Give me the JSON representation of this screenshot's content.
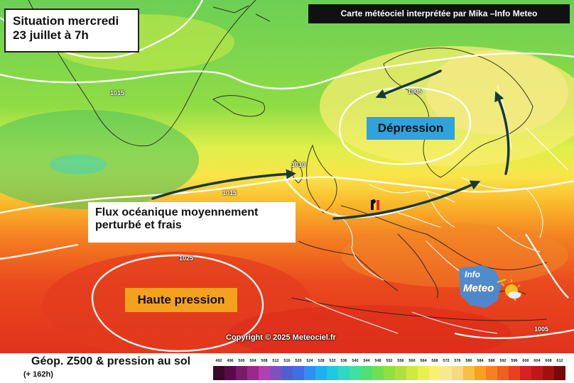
{
  "title": {
    "line1": "Situation mercredi",
    "line2": "23 juillet à 7h"
  },
  "header_banner": "Carte météociel interprétée par Mika –Info Meteo",
  "labels": {
    "depression": "Dépression",
    "haute_pression": "Haute pression",
    "flux_line1": "Flux océanique moyennement",
    "flux_line2": "perturbé et frais"
  },
  "isobars": [
    "1015",
    "1005",
    "1010",
    "1015",
    "1025",
    "1005"
  ],
  "copyright": "Copyright © 2025 Meteociel.fr",
  "logo": {
    "top": "Info",
    "bottom": "Meteo"
  },
  "legend": {
    "title": "Géop. Z500 & pression au sol",
    "subtitle": "(+ 162h)",
    "scale_values": [
      "492",
      "496",
      "500",
      "504",
      "508",
      "512",
      "516",
      "520",
      "524",
      "528",
      "532",
      "536",
      "540",
      "544",
      "548",
      "552",
      "556",
      "560",
      "564",
      "568",
      "572",
      "576",
      "580",
      "584",
      "588",
      "592",
      "596",
      "600",
      "604",
      "608",
      "612"
    ],
    "scale_colors": [
      "#3a0a2a",
      "#5a0a4a",
      "#7a1a6a",
      "#9a2a8a",
      "#b040b0",
      "#8050c0",
      "#5060d0",
      "#4070e0",
      "#3090f0",
      "#20b0f0",
      "#20c8e0",
      "#30d8c0",
      "#40e0a0",
      "#50e070",
      "#70e050",
      "#90e040",
      "#b0e040",
      "#d0e840",
      "#e8f050",
      "#f8f070",
      "#f8e890",
      "#f8d880",
      "#f8c040",
      "#f8a020",
      "#f88020",
      "#f06020",
      "#e84020",
      "#d82020",
      "#c01818",
      "#a01010",
      "#780808"
    ]
  }
}
